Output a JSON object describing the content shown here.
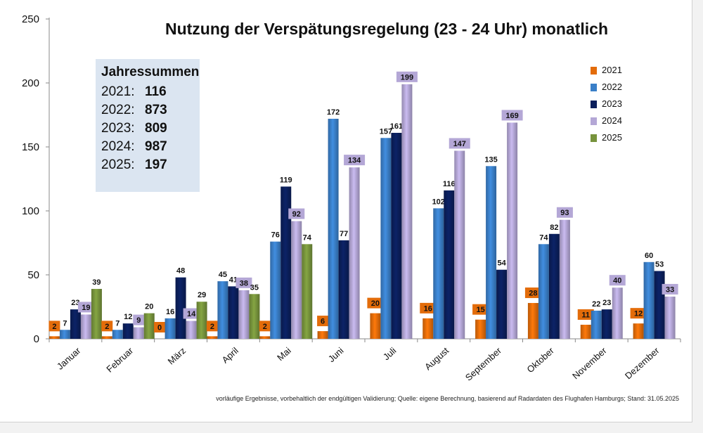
{
  "chart_data": {
    "type": "bar",
    "title": "Nutzung der Verspätungsregelung (23 - 24 Uhr) monatlich",
    "categories": [
      "Januar",
      "Februar",
      "März",
      "April",
      "Mai",
      "Juni",
      "Juli",
      "August",
      "September",
      "Oktober",
      "November",
      "Dezember"
    ],
    "ylim": [
      0,
      250
    ],
    "yticks": [
      0,
      50,
      100,
      150,
      200,
      250
    ],
    "legend_position": "right",
    "series": [
      {
        "name": "2021",
        "color": "#e36c0a",
        "values": [
          2,
          2,
          0,
          2,
          2,
          6,
          20,
          16,
          15,
          28,
          11,
          12
        ]
      },
      {
        "name": "2022",
        "color": "#3a7fc8",
        "values": [
          7,
          7,
          16,
          45,
          76,
          172,
          157,
          102,
          135,
          74,
          22,
          60
        ]
      },
      {
        "name": "2023",
        "color": "#0b1f5c",
        "values": [
          23,
          12,
          48,
          41,
          119,
          77,
          161,
          116,
          54,
          82,
          23,
          53
        ]
      },
      {
        "name": "2024",
        "color": "#b4a7d6",
        "values": [
          19,
          9,
          14,
          38,
          92,
          134,
          199,
          147,
          169,
          93,
          40,
          33
        ]
      },
      {
        "name": "2025",
        "color": "#77933c",
        "values": [
          39,
          20,
          29,
          35,
          74,
          null,
          null,
          null,
          null,
          null,
          null,
          null
        ]
      }
    ]
  },
  "summary": {
    "heading": "Jahressummen",
    "rows": [
      {
        "year": "2021:",
        "value": "116"
      },
      {
        "year": "2022:",
        "value": "873"
      },
      {
        "year": "2023:",
        "value": "809"
      },
      {
        "year": "2024:",
        "value": "987"
      },
      {
        "year": "2025:",
        "value": "197"
      }
    ]
  },
  "footnote": "vorläufige Ergebnisse, vorbehaltlich der endgültigen Validierung; Quelle: eigene Berechnung, basierend auf Radardaten des Flughafen Hamburgs; Stand: 31.05.2025"
}
